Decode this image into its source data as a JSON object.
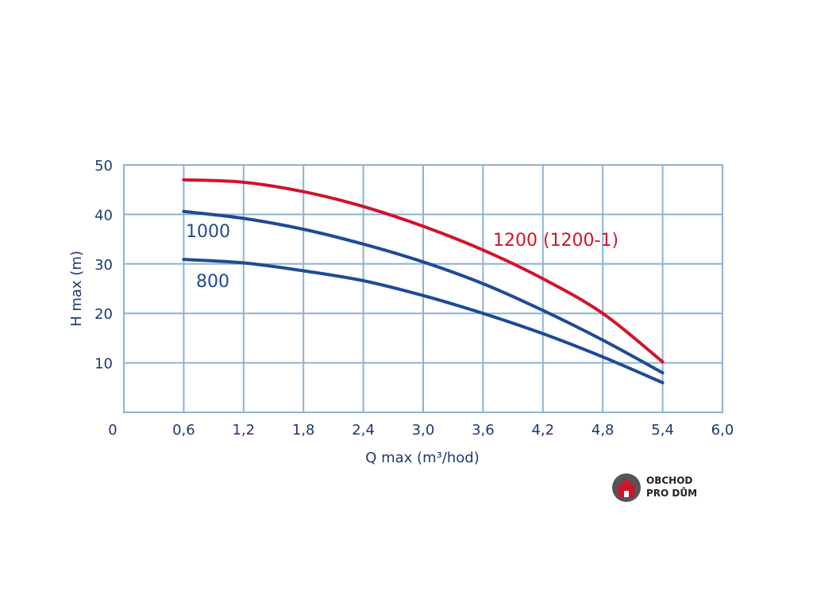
{
  "chart_data": {
    "type": "line",
    "title": "",
    "xlabel": "Q max (m³/hod)",
    "ylabel": "H max (m)",
    "xlim": [
      0,
      6.0
    ],
    "ylim": [
      0,
      50
    ],
    "x_ticks": [
      0,
      0.6,
      1.2,
      1.8,
      2.4,
      3.0,
      3.6,
      4.2,
      4.8,
      5.4,
      6.0
    ],
    "x_tick_labels": [
      "0",
      "0,6",
      "1,2",
      "1,8",
      "2,4",
      "3,0",
      "3,6",
      "4,2",
      "4,8",
      "5,4",
      "6,0"
    ],
    "y_ticks": [
      10,
      20,
      30,
      40,
      50
    ],
    "y_tick_labels": [
      "10",
      "20",
      "30",
      "40",
      "50"
    ],
    "grid": true,
    "legend": "inline labels",
    "series": [
      {
        "name": "1200 (1200-1)",
        "color": "#d0142c",
        "x": [
          0.6,
          1.2,
          1.8,
          2.4,
          3.0,
          3.6,
          4.2,
          4.8,
          5.4
        ],
        "y": [
          47,
          46.5,
          44.6,
          41.6,
          37.6,
          32.8,
          27.0,
          20.0,
          10.2
        ]
      },
      {
        "name": "1000",
        "color": "#1f4a96",
        "x": [
          0.6,
          1.2,
          1.8,
          2.4,
          3.0,
          3.6,
          4.2,
          4.8,
          5.4
        ],
        "y": [
          40.6,
          39.2,
          37.0,
          34.0,
          30.4,
          26.0,
          20.6,
          14.6,
          8.0
        ]
      },
      {
        "name": "800",
        "color": "#1f4a96",
        "x": [
          0.6,
          1.2,
          1.8,
          2.4,
          3.0,
          3.6,
          4.2,
          4.8,
          5.4
        ],
        "y": [
          30.9,
          30.2,
          28.6,
          26.6,
          23.6,
          20.0,
          15.9,
          11.2,
          6.0
        ]
      }
    ]
  },
  "logo": {
    "line1": "OBCHOD",
    "line2": "PRO DŮM",
    "circle_color": "#555555",
    "house_color": "#d0142c"
  }
}
